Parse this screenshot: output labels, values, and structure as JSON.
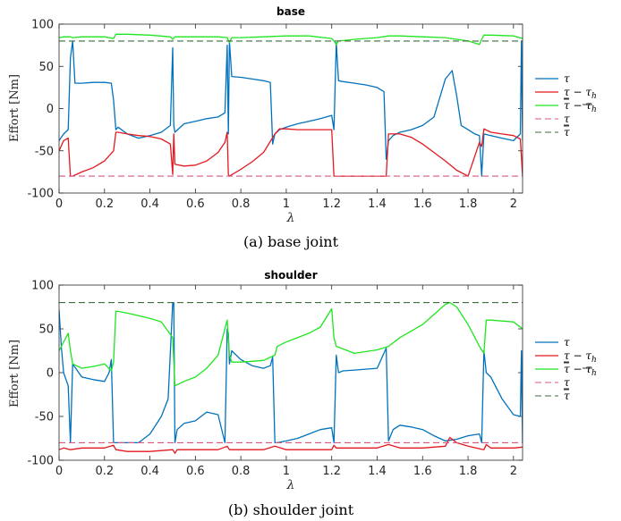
{
  "chart_data": [
    {
      "type": "line",
      "title": "base",
      "ylabel": "Effort [Nm]",
      "xlabel": "λ",
      "caption": "(a) base joint",
      "xlim": [
        0,
        2.04
      ],
      "ylim": [
        -100,
        100
      ],
      "xticks": [
        "0",
        "0.2",
        "0.4",
        "0.6",
        "0.8",
        "1",
        "1.2",
        "1.4",
        "1.6",
        "1.8",
        "2"
      ],
      "yticks": [
        "100",
        "50",
        "0",
        "-50",
        "-100"
      ],
      "legend_position": "right",
      "series": [
        {
          "name": "τ",
          "color": "#0072BD",
          "x": [
            0,
            0.02,
            0.04,
            0.05,
            0.06,
            0.07,
            0.1,
            0.15,
            0.2,
            0.23,
            0.24,
            0.25,
            0.26,
            0.3,
            0.35,
            0.4,
            0.45,
            0.49,
            0.5,
            0.505,
            0.51,
            0.55,
            0.6,
            0.65,
            0.7,
            0.73,
            0.74,
            0.745,
            0.75,
            0.76,
            0.8,
            0.85,
            0.9,
            0.93,
            0.94,
            0.95,
            0.97,
            1.0,
            1.05,
            1.1,
            1.15,
            1.2,
            1.21,
            1.22,
            1.23,
            1.25,
            1.3,
            1.35,
            1.4,
            1.43,
            1.44,
            1.45,
            1.47,
            1.5,
            1.55,
            1.6,
            1.65,
            1.7,
            1.73,
            1.75,
            1.77,
            1.8,
            1.83,
            1.85,
            1.86,
            1.87,
            1.9,
            1.95,
            2.0,
            2.03,
            2.035,
            2.04
          ],
          "y": [
            -38,
            -30,
            -25,
            60,
            80,
            30,
            30,
            31,
            31,
            30,
            10,
            -25,
            -22,
            -30,
            -35,
            -32,
            -28,
            -20,
            72,
            -20,
            -28,
            -18,
            -15,
            -12,
            -10,
            -5,
            75,
            -30,
            80,
            38,
            37,
            35,
            33,
            31,
            -42,
            -30,
            -25,
            -22,
            -18,
            -15,
            -12,
            -8,
            -25,
            78,
            33,
            32,
            30,
            28,
            25,
            20,
            -60,
            -38,
            -32,
            -28,
            -25,
            -20,
            -10,
            35,
            45,
            15,
            -20,
            -25,
            -30,
            -32,
            -80,
            -30,
            -32,
            -35,
            -38,
            -30,
            80,
            -38
          ]
        },
        {
          "name": "τ − τ_h",
          "color": "#E3181F",
          "x": [
            0,
            0.02,
            0.04,
            0.05,
            0.06,
            0.1,
            0.15,
            0.2,
            0.24,
            0.25,
            0.26,
            0.3,
            0.35,
            0.4,
            0.45,
            0.49,
            0.5,
            0.505,
            0.51,
            0.55,
            0.6,
            0.65,
            0.7,
            0.73,
            0.74,
            0.745,
            0.75,
            0.8,
            0.85,
            0.9,
            0.95,
            0.97,
            1.0,
            1.05,
            1.1,
            1.15,
            1.2,
            1.21,
            1.22,
            1.25,
            1.3,
            1.35,
            1.4,
            1.44,
            1.45,
            1.5,
            1.55,
            1.6,
            1.65,
            1.7,
            1.75,
            1.8,
            1.85,
            1.86,
            1.87,
            1.9,
            1.95,
            2.0,
            2.03,
            2.04
          ],
          "y": [
            -50,
            -38,
            -35,
            -80,
            -80,
            -75,
            -70,
            -62,
            -50,
            -28,
            -28,
            -30,
            -32,
            -33,
            -36,
            -42,
            -78,
            -30,
            -66,
            -68,
            -67,
            -62,
            -52,
            -40,
            -28,
            -78,
            -80,
            -72,
            -63,
            -52,
            -30,
            -24,
            -24,
            -25,
            -25,
            -25,
            -25,
            -80,
            -80,
            -80,
            -80,
            -80,
            -80,
            -80,
            -30,
            -30,
            -34,
            -42,
            -52,
            -62,
            -73,
            -80,
            -40,
            -45,
            -24,
            -28,
            -30,
            -32,
            -36,
            -80
          ]
        },
        {
          "name": "τ̄ − τ_h/τ̄_h",
          "color": "#1FE51F",
          "x": [
            0,
            0.02,
            0.05,
            0.06,
            0.1,
            0.2,
            0.24,
            0.25,
            0.26,
            0.3,
            0.4,
            0.49,
            0.5,
            0.51,
            0.55,
            0.6,
            0.7,
            0.74,
            0.75,
            0.76,
            0.8,
            0.9,
            1.0,
            1.1,
            1.2,
            1.21,
            1.22,
            1.23,
            1.3,
            1.4,
            1.45,
            1.5,
            1.6,
            1.7,
            1.8,
            1.85,
            1.86,
            1.87,
            1.9,
            2.0,
            2.04
          ],
          "y": [
            84,
            85,
            85,
            84,
            85,
            85,
            83,
            88,
            88,
            88,
            87,
            85,
            82,
            85,
            85,
            85,
            85,
            84,
            78,
            84,
            84,
            85,
            86,
            86,
            83,
            80,
            76,
            80,
            82,
            84,
            86,
            86,
            85,
            84,
            80,
            76,
            82,
            87,
            87,
            86,
            83
          ]
        },
        {
          "name": "τ̲",
          "color": "#D9577E",
          "dashed": true,
          "x": [
            0,
            2.04
          ],
          "y": [
            -80,
            -80
          ]
        },
        {
          "name": "τ̄",
          "color": "#3F6B3F",
          "dashed": true,
          "x": [
            0,
            2.04
          ],
          "y": [
            80,
            80
          ]
        }
      ]
    },
    {
      "type": "line",
      "title": "shoulder",
      "ylabel": "Effort [Nm]",
      "xlabel": "λ",
      "caption": "(b) shoulder joint",
      "xlim": [
        0,
        2.04
      ],
      "ylim": [
        -100,
        100
      ],
      "xticks": [
        "0",
        "0.2",
        "0.4",
        "0.6",
        "0.8",
        "1",
        "1.2",
        "1.4",
        "1.6",
        "1.8",
        "2"
      ],
      "yticks": [
        "100",
        "50",
        "0",
        "-50",
        "-100"
      ],
      "legend_position": "right",
      "series": [
        {
          "name": "τ",
          "color": "#0072BD",
          "x": [
            0,
            0.01,
            0.02,
            0.04,
            0.05,
            0.06,
            0.1,
            0.15,
            0.2,
            0.22,
            0.23,
            0.24,
            0.3,
            0.35,
            0.4,
            0.45,
            0.48,
            0.5,
            0.505,
            0.51,
            0.52,
            0.55,
            0.6,
            0.65,
            0.7,
            0.73,
            0.74,
            0.745,
            0.75,
            0.76,
            0.8,
            0.85,
            0.9,
            0.93,
            0.94,
            0.95,
            0.96,
            1.0,
            1.05,
            1.1,
            1.15,
            1.2,
            1.21,
            1.22,
            1.23,
            1.25,
            1.3,
            1.35,
            1.4,
            1.44,
            1.45,
            1.47,
            1.5,
            1.55,
            1.6,
            1.65,
            1.7,
            1.75,
            1.8,
            1.85,
            1.86,
            1.87,
            1.88,
            1.9,
            1.95,
            2.0,
            2.03,
            2.035,
            2.04
          ],
          "y": [
            72,
            30,
            0,
            -15,
            -80,
            10,
            -5,
            -8,
            -10,
            0,
            15,
            -80,
            -80,
            -80,
            -70,
            -50,
            -30,
            80,
            80,
            -80,
            -65,
            -58,
            -55,
            -45,
            -48,
            -80,
            50,
            45,
            10,
            25,
            15,
            8,
            5,
            8,
            18,
            -80,
            -80,
            -78,
            -75,
            -70,
            -65,
            -63,
            -80,
            20,
            0,
            2,
            3,
            4,
            5,
            28,
            -78,
            -65,
            -60,
            -62,
            -65,
            -72,
            -78,
            -76,
            -72,
            -70,
            -80,
            25,
            0,
            -5,
            -30,
            -48,
            -50,
            25,
            -80
          ]
        },
        {
          "name": "τ − τ_h",
          "color": "#E3181F",
          "x": [
            0,
            0.02,
            0.05,
            0.1,
            0.2,
            0.24,
            0.25,
            0.3,
            0.4,
            0.5,
            0.51,
            0.52,
            0.6,
            0.7,
            0.74,
            0.75,
            0.8,
            0.9,
            0.95,
            1.0,
            1.1,
            1.2,
            1.21,
            1.22,
            1.3,
            1.4,
            1.45,
            1.5,
            1.6,
            1.7,
            1.72,
            1.75,
            1.8,
            1.87,
            1.88,
            1.9,
            2.0,
            2.04
          ],
          "y": [
            -88,
            -86,
            -88,
            -86,
            -86,
            -83,
            -88,
            -90,
            -90,
            -88,
            -92,
            -88,
            -88,
            -88,
            -84,
            -88,
            -88,
            -88,
            -84,
            -88,
            -88,
            -88,
            -83,
            -86,
            -86,
            -86,
            -82,
            -86,
            -86,
            -84,
            -74,
            -80,
            -84,
            -88,
            -82,
            -86,
            -86,
            -85
          ]
        },
        {
          "name": "τ̄ − τ_h/τ̄_h",
          "color": "#1FE51F",
          "x": [
            0,
            0.02,
            0.04,
            0.05,
            0.06,
            0.1,
            0.15,
            0.2,
            0.23,
            0.24,
            0.25,
            0.26,
            0.3,
            0.35,
            0.4,
            0.45,
            0.5,
            0.51,
            0.55,
            0.6,
            0.65,
            0.7,
            0.74,
            0.75,
            0.76,
            0.8,
            0.9,
            0.95,
            0.96,
            1.0,
            1.1,
            1.15,
            1.2,
            1.21,
            1.22,
            1.3,
            1.4,
            1.45,
            1.5,
            1.6,
            1.7,
            1.72,
            1.75,
            1.8,
            1.85,
            1.87,
            1.88,
            1.9,
            2.0,
            2.04
          ],
          "y": [
            25,
            35,
            45,
            25,
            10,
            5,
            7,
            10,
            2,
            12,
            70,
            70,
            68,
            65,
            62,
            58,
            40,
            -15,
            -10,
            -5,
            5,
            20,
            60,
            20,
            12,
            12,
            14,
            20,
            30,
            35,
            45,
            52,
            73,
            40,
            30,
            22,
            26,
            30,
            40,
            55,
            78,
            80,
            75,
            55,
            30,
            22,
            60,
            60,
            58,
            50
          ]
        },
        {
          "name": "τ̲",
          "color": "#D9577E",
          "dashed": true,
          "x": [
            0,
            2.04
          ],
          "y": [
            -80,
            -80
          ]
        },
        {
          "name": "τ̄",
          "color": "#3F6B3F",
          "dashed": true,
          "x": [
            0,
            2.04
          ],
          "y": [
            80,
            80
          ]
        }
      ]
    }
  ]
}
